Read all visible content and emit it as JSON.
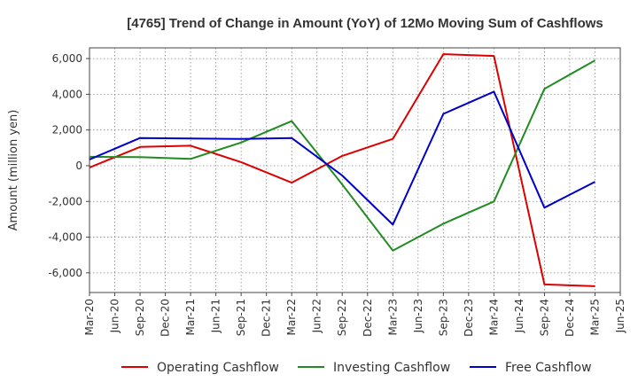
{
  "chart_data": {
    "type": "line",
    "title": "[4765]  Trend of Change in Amount (YoY) of 12Mo Moving Sum of Cashflows",
    "xlabel": "",
    "ylabel": "Amount (million yen)",
    "x": [
      "Mar-20",
      "Jun-20",
      "Sep-20",
      "Dec-20",
      "Mar-21",
      "Jun-21",
      "Sep-21",
      "Dec-21",
      "Mar-22",
      "Jun-22",
      "Sep-22",
      "Dec-22",
      "Mar-23",
      "Jun-23",
      "Sep-23",
      "Dec-23",
      "Mar-24",
      "Jun-24",
      "Sep-24",
      "Dec-24",
      "Mar-25",
      "Jun-25"
    ],
    "yticks": [
      -6000,
      -4000,
      -2000,
      0,
      2000,
      4000,
      6000
    ],
    "ytick_labels": [
      "-6,000",
      "-4,000",
      "-2,000",
      "0",
      "2,000",
      "4,000",
      "6,000"
    ],
    "ylim": [
      -7100,
      6600
    ],
    "grid": true,
    "legend_position": "bottom",
    "series": [
      {
        "name": "Operating Cashflow",
        "color": "#dd0000",
        "values": [
          -100,
          null,
          1050,
          null,
          1120,
          null,
          200,
          null,
          -950,
          null,
          550,
          null,
          1500,
          null,
          6250,
          null,
          6150,
          null,
          -6650,
          null,
          -6750,
          null
        ]
      },
      {
        "name": "Investing Cashflow",
        "color": "#228b22",
        "values": [
          500,
          null,
          480,
          null,
          380,
          null,
          1300,
          null,
          2500,
          null,
          -1050,
          null,
          -4750,
          null,
          -3250,
          null,
          -2000,
          null,
          4300,
          null,
          5900,
          null
        ]
      },
      {
        "name": "Free Cashflow",
        "color": "#0000cc",
        "values": [
          350,
          null,
          1550,
          null,
          1520,
          null,
          1500,
          null,
          1550,
          null,
          -550,
          null,
          -3300,
          null,
          2900,
          null,
          4150,
          null,
          -2350,
          null,
          -900,
          null
        ]
      }
    ]
  }
}
